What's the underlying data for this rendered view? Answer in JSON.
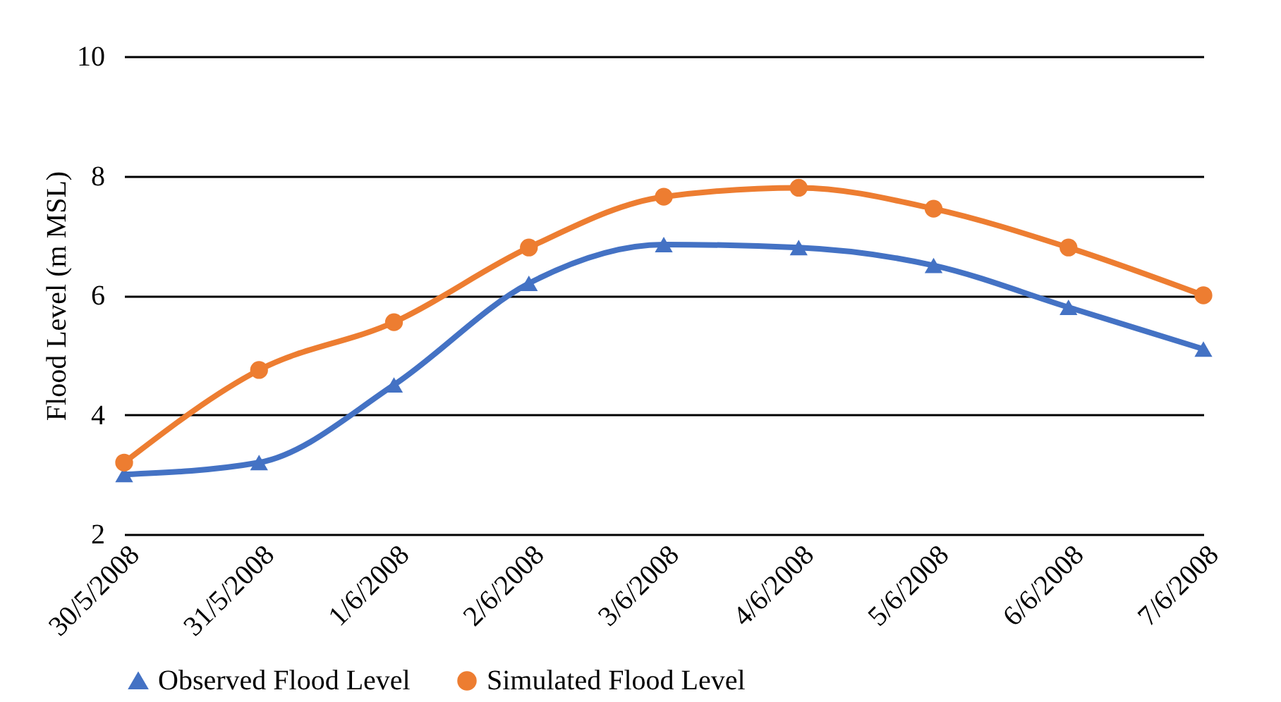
{
  "chart_data": {
    "type": "line",
    "ylabel": "Flood Level (m MSL)",
    "categories": [
      "30/5/2008",
      "31/5/2008",
      "1/6/2008",
      "2/6/2008",
      "3/6/2008",
      "4/6/2008",
      "5/6/2008",
      "6/6/2008",
      "7/6/2008"
    ],
    "series": [
      {
        "name": "Observed Flood Level",
        "color": "#4472c4",
        "marker": "triangle",
        "values": [
          3.0,
          3.2,
          4.5,
          6.2,
          6.85,
          6.8,
          6.5,
          5.8,
          5.1
        ]
      },
      {
        "name": "Simulated Flood Level",
        "color": "#ed7d31",
        "marker": "circle",
        "values": [
          3.2,
          4.75,
          5.55,
          6.8,
          7.65,
          7.8,
          7.45,
          6.8,
          6.0
        ]
      }
    ],
    "ylim": [
      2,
      10
    ],
    "yticks": [
      2,
      4,
      6,
      8,
      10
    ],
    "grid": "y",
    "legend": "bottom",
    "line_style": "solid"
  }
}
